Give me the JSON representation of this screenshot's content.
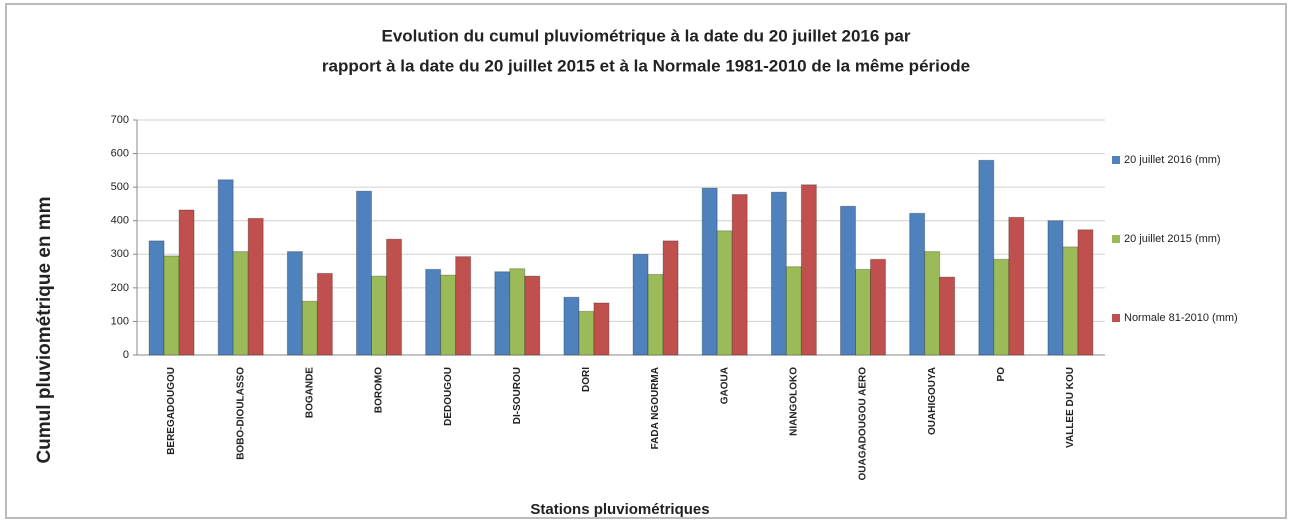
{
  "chart_data": {
    "type": "bar",
    "title": [
      "Evolution du cumul pluviométrique à la date du 20 juillet 2016 par",
      "rapport  à la date du 20 juillet 2015 et à la Normale 1981-2010 de la même période"
    ],
    "x_label": "Stations pluviométriques",
    "y_label": "Cumul pluviométrique  en mm",
    "categories": [
      "BEREGADOUGOU",
      "BOBO-DIOULASSO",
      "BOGANDE",
      "BOROMO",
      "DEDOUGOU",
      "DI-SOUROU",
      "DORI",
      "FADA NGOURMA",
      "GAOUA",
      "NIANGOLOKO",
      "OUAGADOUGOU AERO",
      "OUAHIGOUYA",
      "PO",
      "VALLEE DU KOU"
    ],
    "series": [
      {
        "name": "20 juillet 2016 (mm)",
        "color": "#4f81bd",
        "values": [
          340,
          522,
          308,
          488,
          255,
          248,
          172,
          300,
          497,
          485,
          443,
          422,
          580,
          400
        ]
      },
      {
        "name": "20 juillet 2015 (mm)",
        "color": "#9bbb59",
        "values": [
          295,
          308,
          160,
          235,
          238,
          257,
          130,
          240,
          370,
          263,
          255,
          308,
          285,
          322
        ]
      },
      {
        "name": "Normale 81-2010 (mm)",
        "color": "#c0504d",
        "values": [
          432,
          407,
          243,
          345,
          293,
          235,
          155,
          340,
          478,
          507,
          285,
          232,
          410,
          373
        ]
      }
    ],
    "ylim": [
      0,
      700
    ],
    "yticks": [
      0,
      100,
      200,
      300,
      400,
      500,
      600,
      700
    ],
    "grid": true,
    "legend": "right"
  }
}
